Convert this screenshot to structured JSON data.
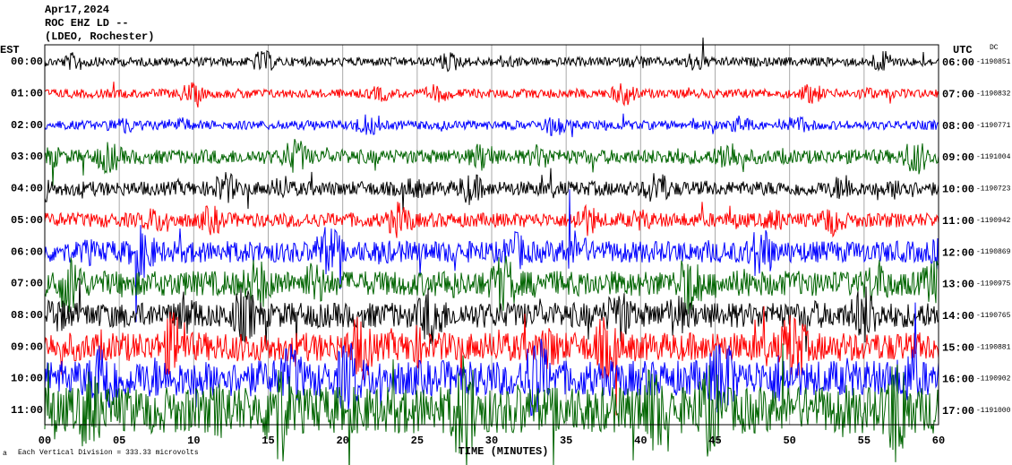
{
  "chart_data": {
    "type": "helicorder",
    "title_lines": [
      "Apr17,2024",
      "ROC EHZ LD --",
      "(LDEO, Rochester)"
    ],
    "left_axis_label": "EST",
    "right_axis_label": "UTC",
    "dc_label": "DC",
    "xlabel": "TIME (MINUTES)",
    "footnote": "Each Vertical Division = 333.33 microvolts",
    "corner_mark": "a",
    "xlim": [
      0,
      60
    ],
    "xticks": [
      {
        "value": 0,
        "label": "00"
      },
      {
        "value": 5,
        "label": "05"
      },
      10,
      15,
      20,
      25,
      30,
      35,
      40,
      45,
      50,
      55,
      60
    ],
    "row_colors": [
      "#000000",
      "#ff0000",
      "#0000ff",
      "#006400"
    ],
    "rows": [
      {
        "left": "00:00",
        "right": "06:00",
        "dc": "-1190851"
      },
      {
        "left": "01:00",
        "right": "07:00",
        "dc": "-1190832"
      },
      {
        "left": "02:00",
        "right": "08:00",
        "dc": "-1190771"
      },
      {
        "left": "03:00",
        "right": "09:00",
        "dc": "-1191004"
      },
      {
        "left": "04:00",
        "right": "10:00",
        "dc": "-1190723"
      },
      {
        "left": "05:00",
        "right": "11:00",
        "dc": "-1190942"
      },
      {
        "left": "06:00",
        "right": "12:00",
        "dc": "-1190869"
      },
      {
        "left": "07:00",
        "right": "13:00",
        "dc": "-1190975"
      },
      {
        "left": "08:00",
        "right": "14:00",
        "dc": "-1190765"
      },
      {
        "left": "09:00",
        "right": "15:00",
        "dc": "-1190881"
      },
      {
        "left": "10:00",
        "right": "16:00",
        "dc": "-1190902"
      },
      {
        "left": "11:00",
        "right": "17:00",
        "dc": "-1191000"
      }
    ]
  }
}
